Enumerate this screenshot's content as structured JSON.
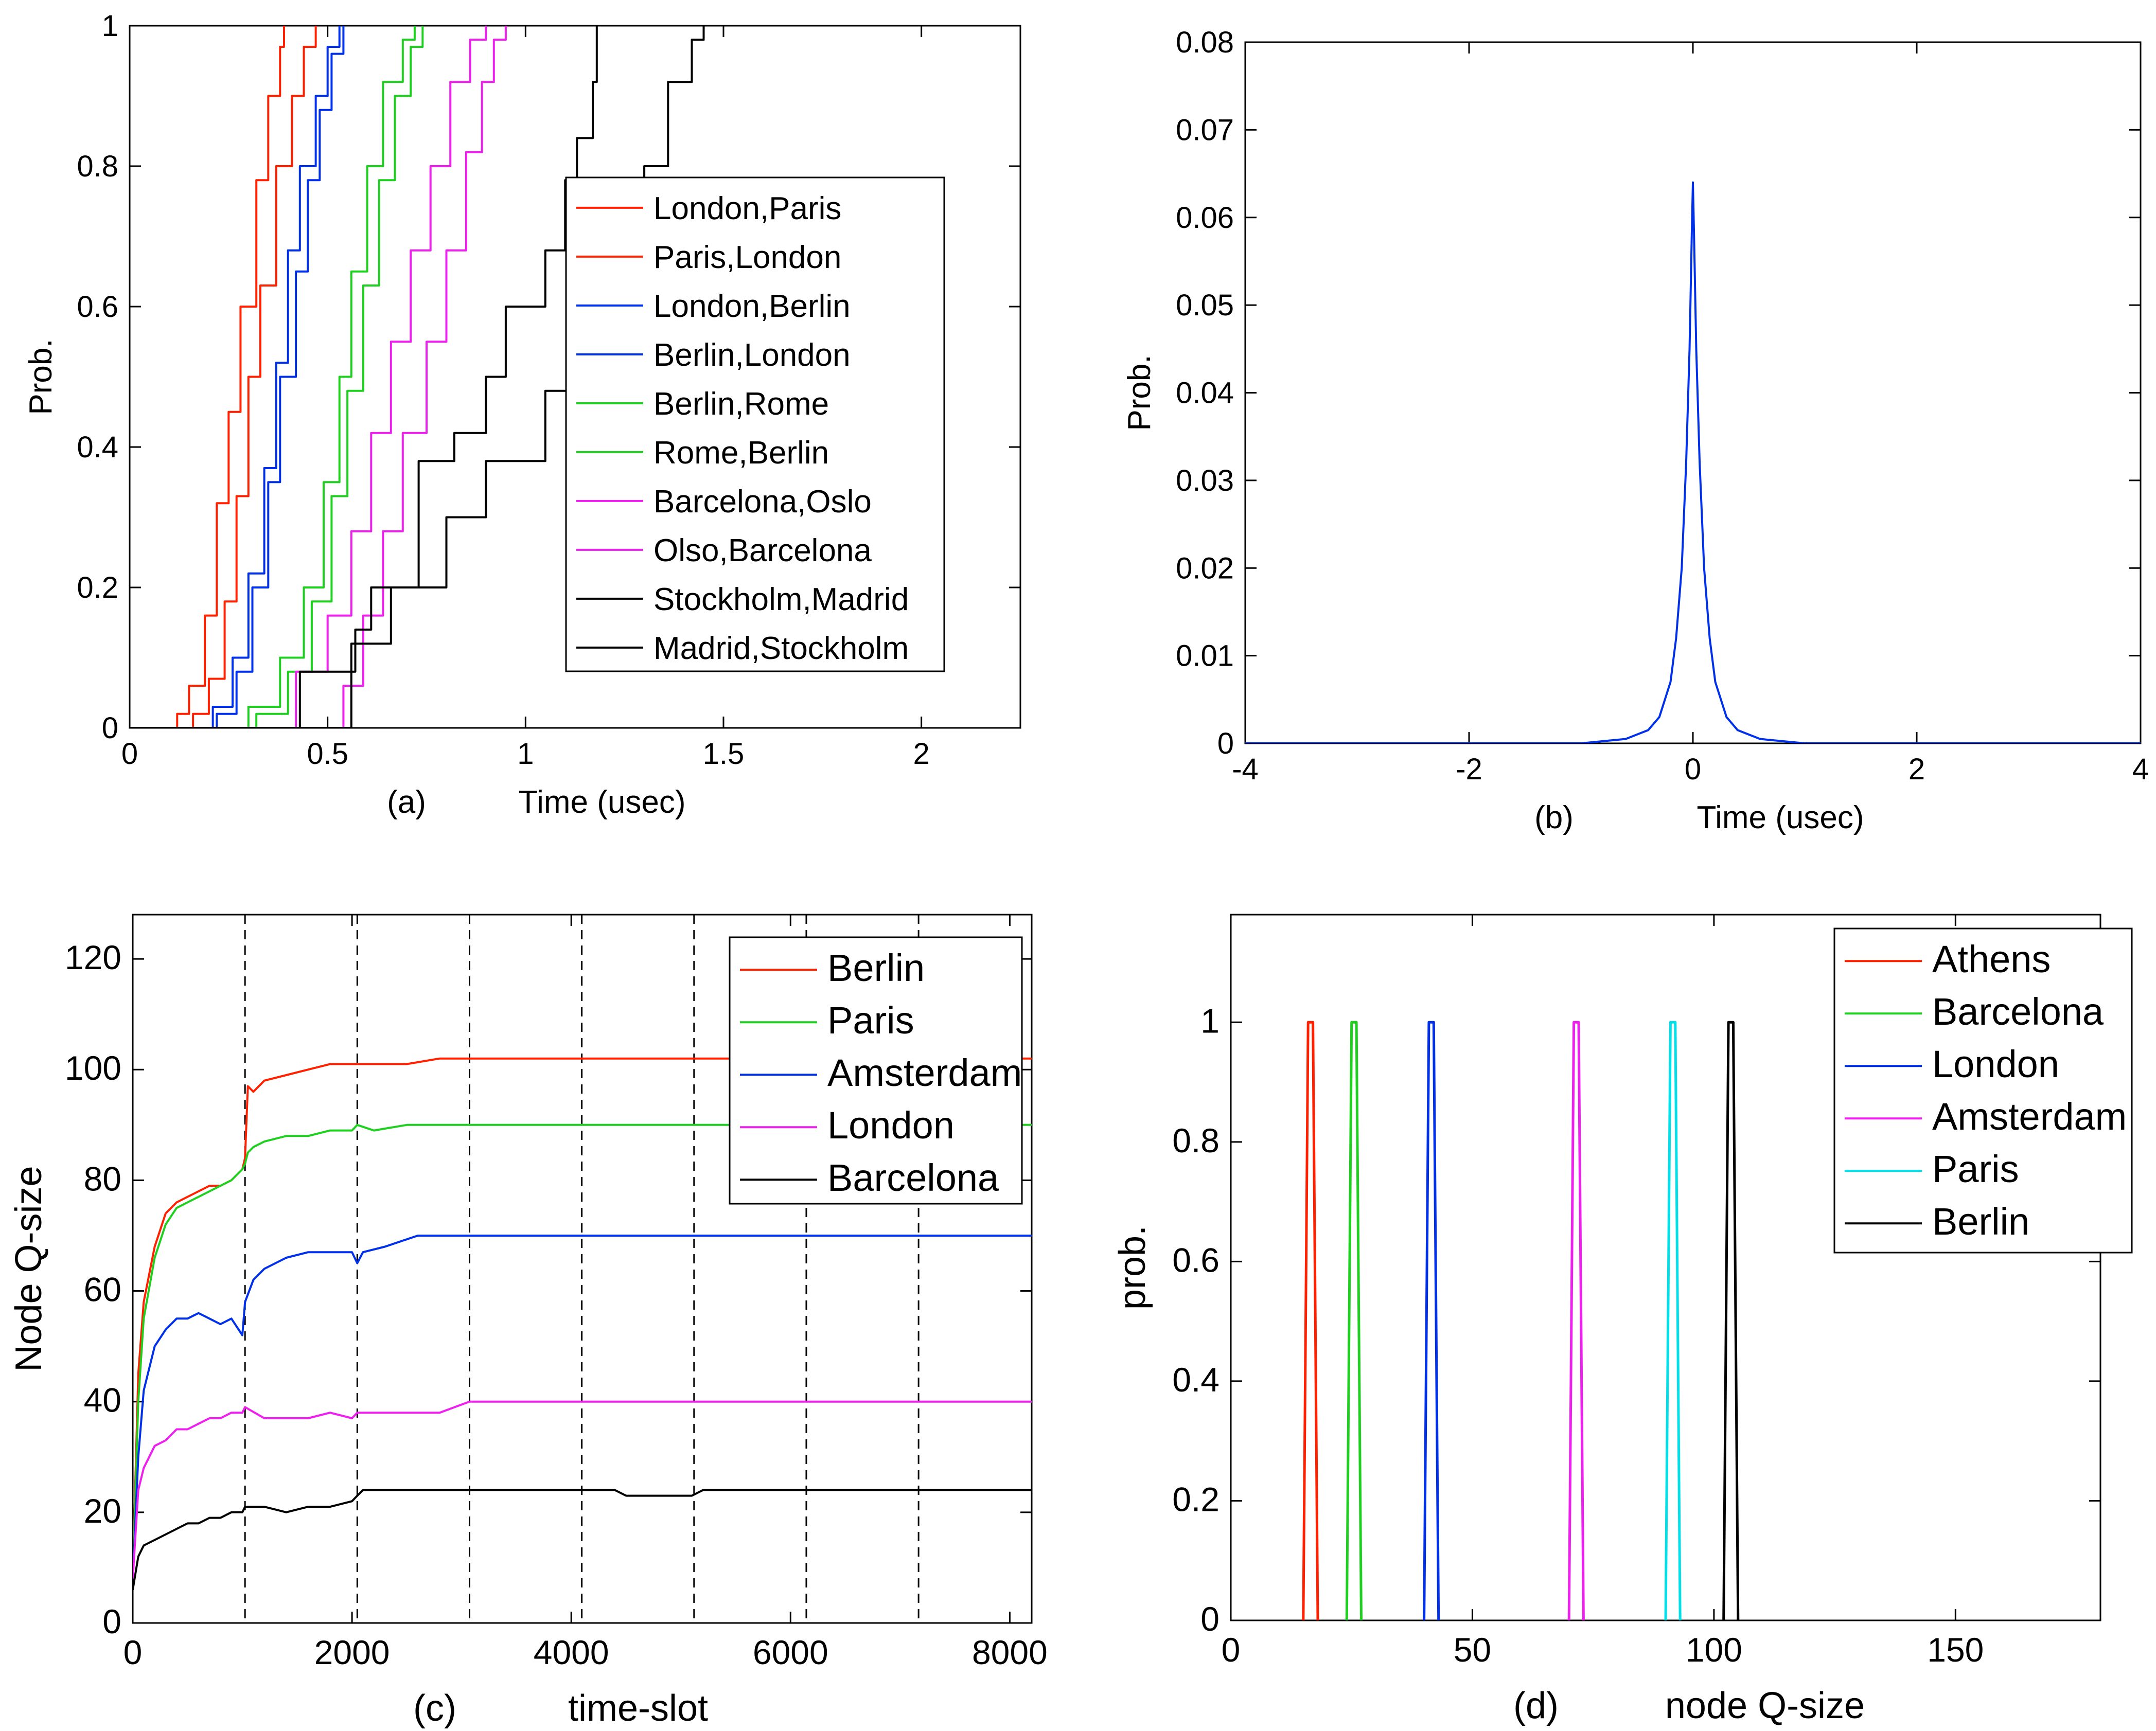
{
  "chart_data": [
    {
      "panel": "a",
      "type": "line",
      "step": true,
      "caption": "(a)",
      "xlabel": "Time (usec)",
      "ylabel": "Prob.",
      "xlim": [
        0,
        2.25
      ],
      "ylim": [
        0,
        1
      ],
      "xticks": [
        0,
        0.5,
        1,
        1.5,
        2
      ],
      "xtick_labels": [
        "0",
        "0.5",
        "1",
        "1.5",
        "2"
      ],
      "yticks": [
        0,
        0.2,
        0.4,
        0.6,
        0.8,
        1
      ],
      "ytick_labels": [
        "0",
        "0.2",
        "0.4",
        "0.6",
        "0.8",
        "1"
      ],
      "legend_position": "right",
      "series": [
        {
          "name": "London,Paris",
          "color": "#ff2000",
          "x": [
            0.08,
            0.12,
            0.15,
            0.19,
            0.22,
            0.25,
            0.28,
            0.32,
            0.35,
            0.38,
            0.39
          ],
          "y": [
            0.0,
            0.02,
            0.06,
            0.16,
            0.32,
            0.45,
            0.6,
            0.78,
            0.9,
            0.97,
            1.0
          ]
        },
        {
          "name": "Paris,London",
          "color": "#ff2000",
          "x": [
            0.12,
            0.16,
            0.2,
            0.24,
            0.27,
            0.3,
            0.33,
            0.37,
            0.41,
            0.44,
            0.47
          ],
          "y": [
            0.0,
            0.02,
            0.07,
            0.18,
            0.33,
            0.5,
            0.63,
            0.8,
            0.9,
            0.97,
            1.0
          ]
        },
        {
          "name": "London,Berlin",
          "color": "#0030e8",
          "x": [
            0.16,
            0.21,
            0.26,
            0.3,
            0.34,
            0.37,
            0.4,
            0.43,
            0.47,
            0.5,
            0.53
          ],
          "y": [
            0.0,
            0.03,
            0.1,
            0.22,
            0.37,
            0.52,
            0.68,
            0.8,
            0.9,
            0.97,
            1.0
          ]
        },
        {
          "name": "Berlin,London",
          "color": "#0030e8",
          "x": [
            0.17,
            0.22,
            0.27,
            0.31,
            0.35,
            0.38,
            0.42,
            0.45,
            0.48,
            0.51,
            0.54
          ],
          "y": [
            0.0,
            0.02,
            0.08,
            0.2,
            0.35,
            0.5,
            0.65,
            0.78,
            0.88,
            0.96,
            1.0
          ]
        },
        {
          "name": "Berlin,Rome",
          "color": "#20d020",
          "x": [
            0.22,
            0.3,
            0.38,
            0.44,
            0.49,
            0.53,
            0.56,
            0.6,
            0.64,
            0.69,
            0.72
          ],
          "y": [
            0.0,
            0.03,
            0.1,
            0.2,
            0.35,
            0.5,
            0.65,
            0.8,
            0.92,
            0.98,
            1.0
          ]
        },
        {
          "name": "Rome,Berlin",
          "color": "#20d020",
          "x": [
            0.24,
            0.32,
            0.4,
            0.46,
            0.51,
            0.55,
            0.59,
            0.63,
            0.67,
            0.71,
            0.74
          ],
          "y": [
            0.0,
            0.02,
            0.08,
            0.18,
            0.33,
            0.48,
            0.63,
            0.78,
            0.9,
            0.97,
            1.0
          ]
        },
        {
          "name": "Barcelona,Oslo",
          "color": "#ee20ee",
          "x": [
            0.37,
            0.42,
            0.5,
            0.56,
            0.61,
            0.66,
            0.71,
            0.76,
            0.81,
            0.86,
            0.9
          ],
          "y": [
            0.0,
            0.08,
            0.16,
            0.28,
            0.42,
            0.55,
            0.68,
            0.8,
            0.92,
            0.98,
            1.0
          ]
        },
        {
          "name": "Olso,Barcelona",
          "color": "#ee20ee",
          "x": [
            0.5,
            0.54,
            0.59,
            0.64,
            0.69,
            0.75,
            0.8,
            0.85,
            0.89,
            0.92,
            0.95
          ],
          "y": [
            0.0,
            0.06,
            0.16,
            0.28,
            0.42,
            0.55,
            0.68,
            0.82,
            0.92,
            0.98,
            1.0
          ]
        },
        {
          "name": "Stockholm,Madrid",
          "color": "#000000",
          "x": [
            0.41,
            0.43,
            0.57,
            0.61,
            0.73,
            0.82,
            0.9,
            0.95,
            1.05,
            1.1,
            1.13,
            1.17,
            1.18
          ],
          "y": [
            0.0,
            0.08,
            0.14,
            0.2,
            0.38,
            0.42,
            0.5,
            0.6,
            0.68,
            0.78,
            0.84,
            0.92,
            1.0
          ]
        },
        {
          "name": "Madrid,Stockholm",
          "color": "#000000",
          "x": [
            0.43,
            0.56,
            0.66,
            0.8,
            0.9,
            1.05,
            1.12,
            1.2,
            1.3,
            1.36,
            1.42,
            1.45
          ],
          "y": [
            0.0,
            0.12,
            0.2,
            0.3,
            0.38,
            0.48,
            0.62,
            0.7,
            0.8,
            0.92,
            0.98,
            1.0
          ]
        }
      ]
    },
    {
      "panel": "b",
      "type": "line",
      "caption": "(b)",
      "xlabel": "Time (usec)",
      "ylabel": "Prob.",
      "xlim": [
        -4,
        4
      ],
      "ylim": [
        0,
        0.08
      ],
      "xticks": [
        -4,
        -2,
        0,
        2,
        4
      ],
      "xtick_labels": [
        "-4",
        "-2",
        "0",
        "2",
        "4"
      ],
      "yticks": [
        0,
        0.01,
        0.02,
        0.03,
        0.04,
        0.05,
        0.06,
        0.07,
        0.08
      ],
      "ytick_labels": [
        "0",
        "0.01",
        "0.02",
        "0.03",
        "0.04",
        "0.05",
        "0.06",
        "0.07",
        "0.08"
      ],
      "series": [
        {
          "color": "#0030e8",
          "x": [
            -4,
            -1.0,
            -0.6,
            -0.4,
            -0.3,
            -0.2,
            -0.15,
            -0.1,
            -0.06,
            -0.03,
            -0.01,
            0,
            0.01,
            0.03,
            0.06,
            0.1,
            0.15,
            0.2,
            0.3,
            0.4,
            0.6,
            1.0,
            4
          ],
          "y": [
            0,
            0.0,
            0.0005,
            0.0015,
            0.003,
            0.007,
            0.012,
            0.02,
            0.032,
            0.045,
            0.058,
            0.064,
            0.058,
            0.045,
            0.032,
            0.02,
            0.012,
            0.007,
            0.003,
            0.0015,
            0.0005,
            0.0,
            0
          ]
        }
      ]
    },
    {
      "panel": "c",
      "type": "line",
      "caption": "(c)",
      "xlabel": "time-slot",
      "ylabel": "Node Q-size",
      "xlim": [
        0,
        8200
      ],
      "ylim": [
        0,
        128
      ],
      "xticks": [
        0,
        2000,
        4000,
        6000,
        8000
      ],
      "xtick_labels": [
        "0",
        "2000",
        "4000",
        "6000",
        "8000"
      ],
      "yticks": [
        0,
        20,
        40,
        60,
        80,
        100,
        120
      ],
      "ytick_labels": [
        "0",
        "20",
        "40",
        "60",
        "80",
        "100",
        "120"
      ],
      "vlines": [
        1024,
        2048,
        3072,
        4096,
        5120,
        6144,
        7168
      ],
      "legend_position": "top-right",
      "series": [
        {
          "name": "Berlin",
          "color": "#ff2000",
          "x": [
            0,
            50,
            100,
            200,
            300,
            400,
            500,
            600,
            700,
            800,
            900,
            1000,
            1024,
            1050,
            1100,
            1200,
            1400,
            1600,
            1800,
            2000,
            2048,
            2200,
            2500,
            2800,
            3000,
            3072,
            3500,
            5000,
            8200
          ],
          "y": [
            8,
            45,
            58,
            68,
            74,
            76,
            77,
            78,
            79,
            79,
            80,
            82,
            84,
            97,
            96,
            98,
            99,
            100,
            101,
            101,
            101,
            101,
            101,
            102,
            102,
            102,
            102,
            102,
            102
          ]
        },
        {
          "name": "Paris",
          "color": "#20d020",
          "x": [
            0,
            50,
            100,
            200,
            300,
            400,
            500,
            600,
            700,
            800,
            900,
            1000,
            1024,
            1050,
            1100,
            1200,
            1400,
            1600,
            1800,
            2000,
            2048,
            2200,
            2500,
            3000,
            5000,
            8200
          ],
          "y": [
            8,
            40,
            55,
            66,
            72,
            75,
            76,
            77,
            78,
            79,
            80,
            82,
            83,
            85,
            86,
            87,
            88,
            88,
            89,
            89,
            90,
            89,
            90,
            90,
            90,
            90
          ]
        },
        {
          "name": "Amsterdam",
          "color": "#0030e8",
          "x": [
            0,
            50,
            100,
            200,
            300,
            400,
            500,
            600,
            700,
            800,
            900,
            1000,
            1024,
            1100,
            1200,
            1400,
            1600,
            1800,
            2000,
            2048,
            2100,
            2300,
            2600,
            3000,
            5000,
            8200
          ],
          "y": [
            8,
            30,
            42,
            50,
            53,
            55,
            55,
            56,
            55,
            54,
            55,
            52,
            58,
            62,
            64,
            66,
            67,
            67,
            67,
            65,
            67,
            68,
            70,
            70,
            70,
            70
          ]
        },
        {
          "name": "London",
          "color": "#ee20ee",
          "x": [
            0,
            50,
            100,
            200,
            300,
            400,
            500,
            600,
            700,
            800,
            900,
            1000,
            1024,
            1200,
            1400,
            1600,
            1800,
            2000,
            2048,
            2200,
            2500,
            2800,
            3072,
            5000,
            8200
          ],
          "y": [
            8,
            24,
            28,
            32,
            33,
            35,
            35,
            36,
            37,
            37,
            38,
            38,
            39,
            37,
            37,
            37,
            38,
            37,
            38,
            38,
            38,
            38,
            40,
            40,
            40
          ]
        },
        {
          "name": "Barcelona",
          "color": "#000000",
          "x": [
            0,
            50,
            100,
            200,
            300,
            400,
            500,
            600,
            700,
            800,
            900,
            1000,
            1024,
            1200,
            1400,
            1600,
            1800,
            2000,
            2048,
            2100,
            3000,
            4400,
            4500,
            5100,
            5200,
            8200
          ],
          "y": [
            6,
            12,
            14,
            15,
            16,
            17,
            18,
            18,
            19,
            19,
            20,
            20,
            21,
            21,
            20,
            21,
            21,
            22,
            23,
            24,
            24,
            24,
            23,
            23,
            24,
            24
          ]
        }
      ]
    },
    {
      "panel": "d",
      "type": "line",
      "caption": "(d)",
      "xlabel": "node Q-size",
      "ylabel": "prob.",
      "xlim": [
        0,
        180
      ],
      "ylim": [
        0,
        1.18
      ],
      "xticks": [
        0,
        50,
        100,
        150
      ],
      "xtick_labels": [
        "0",
        "50",
        "100",
        "150"
      ],
      "yticks": [
        0,
        0.2,
        0.4,
        0.6,
        0.8,
        1
      ],
      "ytick_labels": [
        "0",
        "0.2",
        "0.4",
        "0.6",
        "0.8",
        "1"
      ],
      "legend_position": "top-right",
      "series": [
        {
          "name": "Athens",
          "color": "#ff2000",
          "x": [
            15,
            16,
            17,
            18
          ],
          "y": [
            0,
            1,
            1,
            0
          ]
        },
        {
          "name": "Barcelona",
          "color": "#20d020",
          "x": [
            24,
            25,
            26,
            27
          ],
          "y": [
            0,
            1,
            1,
            0
          ]
        },
        {
          "name": "London",
          "color": "#0030e8",
          "x": [
            40,
            41,
            42,
            43
          ],
          "y": [
            0,
            1,
            1,
            0
          ]
        },
        {
          "name": "Amsterdam",
          "color": "#ee20ee",
          "x": [
            70,
            71,
            72,
            73
          ],
          "y": [
            0,
            1,
            1,
            0
          ]
        },
        {
          "name": "Paris",
          "color": "#00e0e8",
          "x": [
            90,
            91,
            92,
            93
          ],
          "y": [
            0,
            1,
            1,
            0
          ]
        },
        {
          "name": "Berlin",
          "color": "#000000",
          "x": [
            102,
            103,
            104,
            105
          ],
          "y": [
            0,
            1,
            1,
            0
          ]
        }
      ]
    }
  ]
}
